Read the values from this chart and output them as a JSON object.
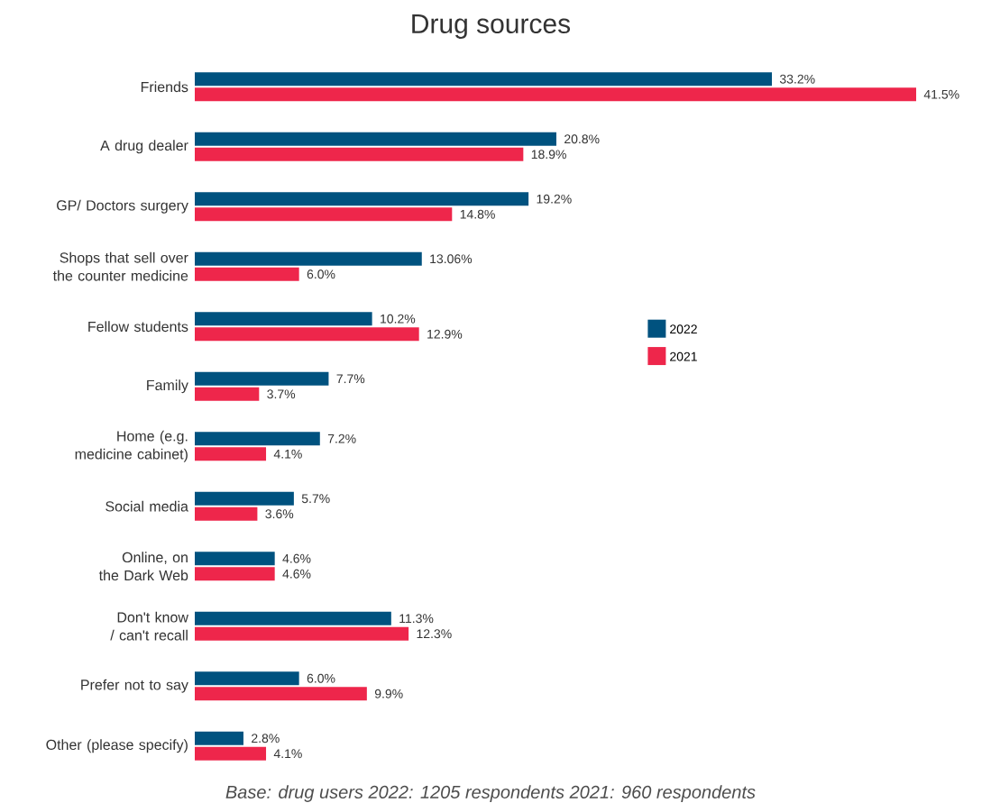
{
  "chart_data": {
    "type": "bar",
    "orientation": "horizontal",
    "title": "Drug sources",
    "categories": [
      "Friends",
      "A drug dealer",
      "GP/ Doctors surgery",
      "Shops that sell over the counter medicine",
      "Fellow students",
      "Family",
      "Home (e.g. medicine cabinet)",
      "Social media",
      "Online, on the Dark Web",
      "Don't know / can't recall",
      "Prefer not to say",
      "Other (please specify)"
    ],
    "series": [
      {
        "name": "2022",
        "color": "#00527f",
        "values": [
          33.2,
          20.8,
          19.2,
          13.06,
          10.2,
          7.7,
          7.2,
          5.7,
          4.6,
          11.3,
          6.0,
          2.8
        ],
        "value_labels": [
          "33.2%",
          "20.8%",
          "19.2%",
          "13.06%",
          "10.2%",
          "7.7%",
          "7.2%",
          "5.7%",
          "4.6%",
          "11.3%",
          "6.0%",
          "2.8%"
        ]
      },
      {
        "name": "2021",
        "color": "#ee264b",
        "values": [
          41.5,
          18.9,
          14.8,
          6.0,
          12.9,
          3.7,
          4.1,
          3.6,
          4.6,
          12.3,
          9.9,
          4.1
        ],
        "value_labels": [
          "41.5%",
          "18.9%",
          "14.8%",
          "6.0%",
          "12.9%",
          "3.7%",
          "4.1%",
          "3.6%",
          "4.6%",
          "12.3%",
          "9.9%",
          "4.1%"
        ]
      }
    ],
    "legend": "right",
    "annotations": [
      "Base: drug users 2022: 1205 respondents 2021: 960 respondents"
    ]
  }
}
